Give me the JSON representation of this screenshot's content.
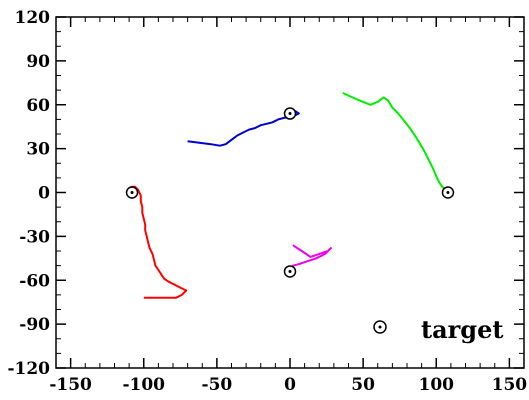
{
  "chart_data": {
    "type": "line",
    "title": "",
    "xlabel": "",
    "ylabel": "",
    "xlim": [
      -160,
      160
    ],
    "ylim": [
      -120,
      120
    ],
    "xticks": [
      -150,
      -100,
      -50,
      0,
      50,
      100,
      150
    ],
    "yticks": [
      -120,
      -90,
      -60,
      -30,
      0,
      30,
      60,
      90,
      120
    ],
    "x_minor_step": 10,
    "y_minor_step": 10,
    "grid": false,
    "legend": {
      "position": "bottom-right",
      "label": "target",
      "marker": "circle-dot"
    },
    "targets": [
      {
        "x": -108,
        "y": 0
      },
      {
        "x": 108,
        "y": 0
      },
      {
        "x": 0,
        "y": 54
      },
      {
        "x": 0,
        "y": -54
      }
    ],
    "series": [
      {
        "color": "#ff0000",
        "points": [
          [
            -100,
            -72
          ],
          [
            -92,
            -72
          ],
          [
            -85,
            -72
          ],
          [
            -78,
            -72
          ],
          [
            -74,
            -70
          ],
          [
            -71,
            -67
          ],
          [
            -75,
            -65
          ],
          [
            -79,
            -63
          ],
          [
            -83,
            -61
          ],
          [
            -86,
            -59
          ],
          [
            -88,
            -56
          ],
          [
            -90,
            -53
          ],
          [
            -92,
            -50
          ],
          [
            -93,
            -46
          ],
          [
            -94,
            -42
          ],
          [
            -96,
            -38
          ],
          [
            -97,
            -34
          ],
          [
            -98,
            -30
          ],
          [
            -99,
            -26
          ],
          [
            -99,
            -22
          ],
          [
            -100,
            -18
          ],
          [
            -101,
            -14
          ],
          [
            -101,
            -10
          ],
          [
            -102,
            -6
          ],
          [
            -102,
            -2
          ],
          [
            -104,
            2
          ],
          [
            -106,
            4
          ],
          [
            -108,
            4
          ],
          [
            -110,
            3
          ],
          [
            -109,
            0
          ]
        ]
      },
      {
        "color": "#00ee00",
        "points": [
          [
            36,
            68
          ],
          [
            45,
            64
          ],
          [
            55,
            60
          ],
          [
            60,
            62
          ],
          [
            64,
            65
          ],
          [
            67,
            63
          ],
          [
            70,
            58
          ],
          [
            74,
            54
          ],
          [
            78,
            49
          ],
          [
            82,
            44
          ],
          [
            86,
            38
          ],
          [
            89,
            33
          ],
          [
            92,
            28
          ],
          [
            95,
            22
          ],
          [
            98,
            16
          ],
          [
            100,
            11
          ],
          [
            102,
            7
          ],
          [
            104,
            4
          ],
          [
            106,
            2
          ],
          [
            108,
            0
          ]
        ]
      },
      {
        "color": "#0000cc",
        "points": [
          [
            -70,
            35
          ],
          [
            -62,
            34
          ],
          [
            -54,
            33
          ],
          [
            -48,
            32
          ],
          [
            -44,
            33
          ],
          [
            -40,
            36
          ],
          [
            -36,
            39
          ],
          [
            -32,
            41
          ],
          [
            -28,
            43
          ],
          [
            -24,
            44
          ],
          [
            -20,
            46
          ],
          [
            -16,
            47
          ],
          [
            -12,
            48
          ],
          [
            -8,
            50
          ],
          [
            -4,
            51
          ],
          [
            0,
            52
          ],
          [
            4,
            53
          ],
          [
            6,
            54
          ],
          [
            3,
            56
          ],
          [
            0,
            54
          ]
        ]
      },
      {
        "color": "#ee00ee",
        "points": [
          [
            2,
            -36
          ],
          [
            8,
            -40
          ],
          [
            14,
            -44
          ],
          [
            20,
            -42
          ],
          [
            26,
            -40
          ],
          [
            28,
            -38
          ],
          [
            24,
            -42
          ],
          [
            18,
            -45
          ],
          [
            12,
            -47
          ],
          [
            6,
            -49
          ],
          [
            2,
            -50
          ],
          [
            0,
            -54
          ]
        ]
      }
    ]
  }
}
